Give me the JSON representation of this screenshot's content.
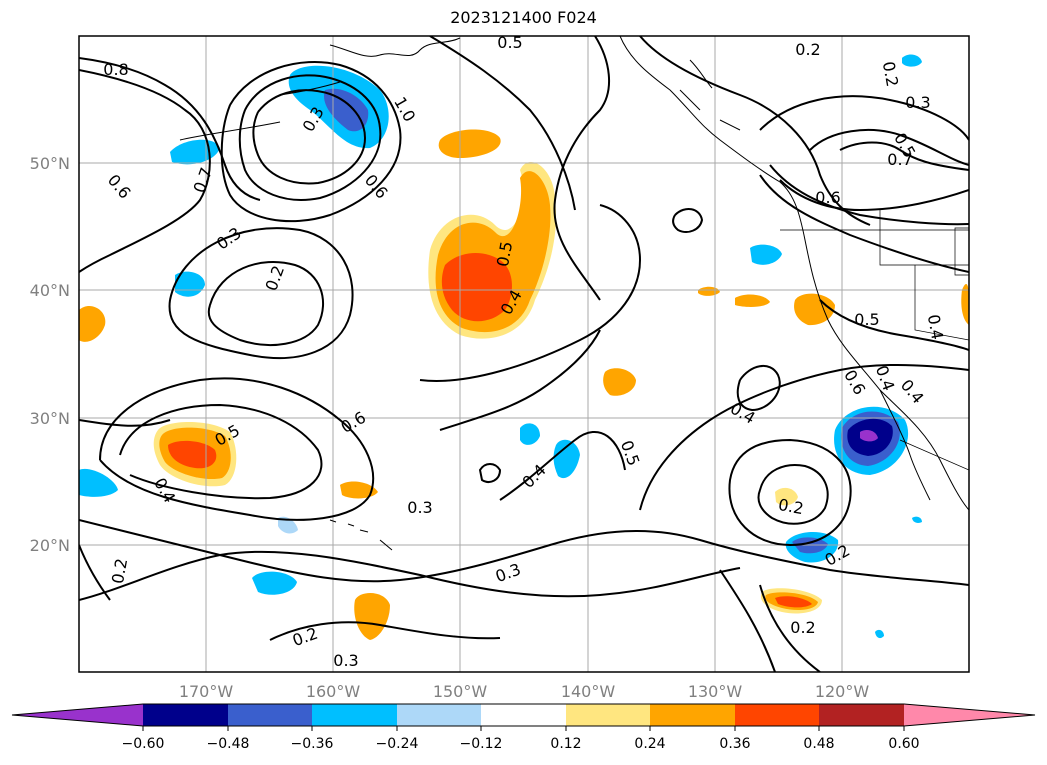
{
  "title": "2023121400 F024",
  "lat_ticks": [
    "50°N",
    "40°N",
    "30°N",
    "20°N"
  ],
  "lon_ticks": [
    "170°W",
    "160°W",
    "150°W",
    "140°W",
    "130°W",
    "120°W"
  ],
  "colorbar": {
    "labels": [
      "−0.60",
      "−0.48",
      "−0.36",
      "−0.24",
      "−0.12",
      "0.12",
      "0.24",
      "0.36",
      "0.48",
      "0.60"
    ],
    "colors": [
      "#9932cc",
      "#00008b",
      "#3a5fcd",
      "#00bfff",
      "#add8f8",
      "#ffffff",
      "#ffe680",
      "#ffa500",
      "#ff4500",
      "#b22222",
      "#ff88aa"
    ]
  },
  "contour_labels": [
    "0.8",
    "0.5",
    "0.2",
    "0.2",
    "0.3",
    "0.3",
    "1.0",
    "0.7",
    "0.6",
    "0.6",
    "0.3",
    "0.2",
    "0.6",
    "0.5",
    "0.4",
    "0.7",
    "0.6",
    "0.5",
    "0.4",
    "0.4",
    "0.4",
    "0.6",
    "0.5",
    "0.4",
    "0.5",
    "0.3",
    "0.4",
    "0.2",
    "0.2",
    "0.3",
    "0.2",
    "0.2",
    "0.3",
    "0.2",
    "0.4",
    "0.5"
  ]
}
